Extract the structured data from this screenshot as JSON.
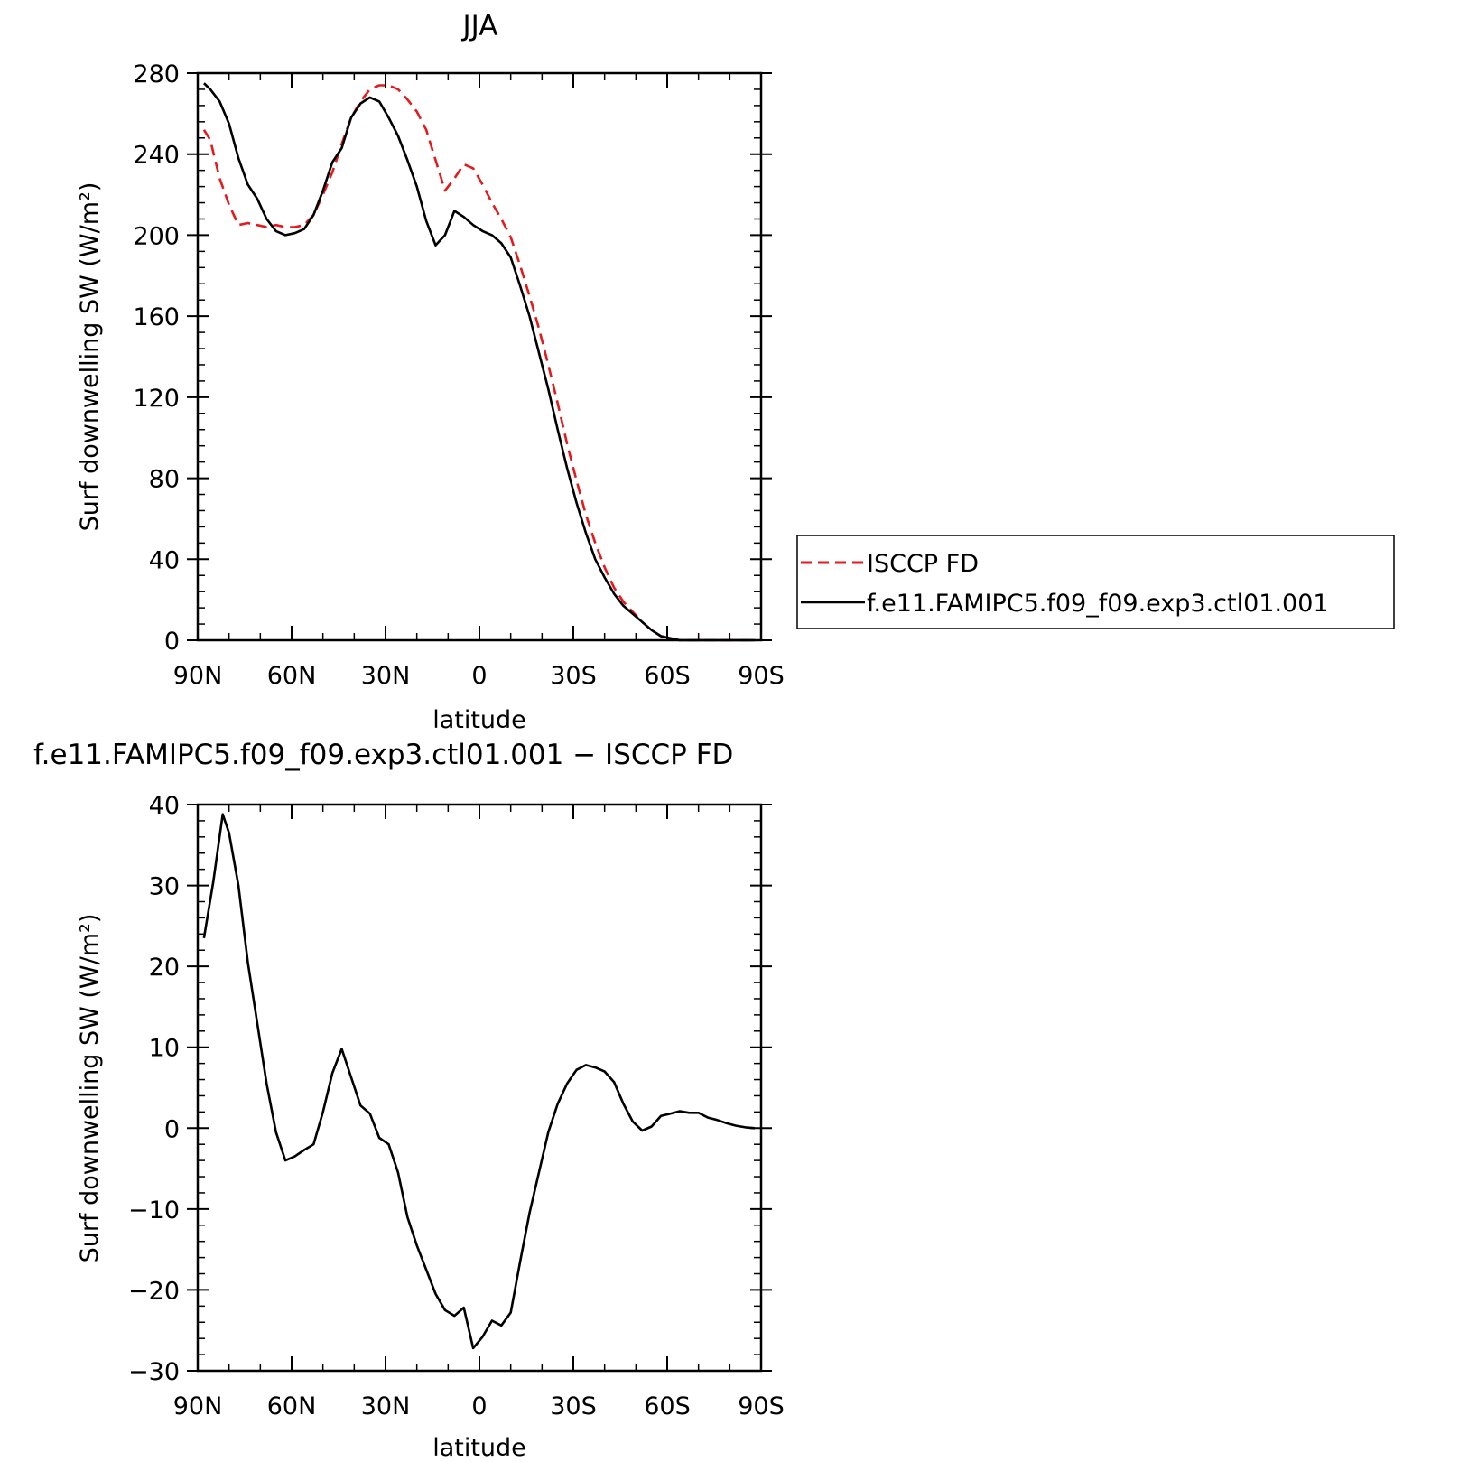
{
  "chart_data": [
    {
      "type": "line",
      "title": "JJA",
      "xlabel": "latitude",
      "ylabel": "Surf downwelling SW (W/m²)",
      "xlim": [
        90,
        -90
      ],
      "ylim": [
        0,
        280
      ],
      "xticks": [
        90,
        60,
        30,
        0,
        -30,
        -60,
        -90
      ],
      "xtick_labels": [
        "90N",
        "60N",
        "30N",
        "0",
        "30S",
        "60S",
        "90S"
      ],
      "yticks": [
        0,
        40,
        80,
        120,
        160,
        200,
        240,
        280
      ],
      "ytick_labels": [
        "0",
        "40",
        "80",
        "120",
        "160",
        "200",
        "240",
        "280"
      ],
      "grid": false,
      "legend_position": "right",
      "series": [
        {
          "name": "ISCCP FD",
          "color": "#e41a1c",
          "dash": "dashed",
          "x": [
            88,
            86,
            83,
            80,
            77,
            74,
            71,
            68,
            65,
            62,
            59,
            56,
            53,
            50,
            47,
            44,
            41,
            38,
            35,
            32,
            29,
            26,
            23,
            20,
            17,
            14,
            11,
            8,
            5,
            2,
            -1,
            -4,
            -7,
            -10,
            -13,
            -16,
            -19,
            -22,
            -25,
            -28,
            -31,
            -34,
            -37,
            -40,
            -43,
            -46,
            -49,
            -52,
            -55,
            -58,
            -61,
            -64,
            -67,
            -70,
            -73,
            -76,
            -79,
            -82,
            -85,
            -88
          ],
          "y": [
            252,
            247,
            228,
            215,
            205,
            206,
            205,
            204,
            205,
            204,
            204,
            205,
            210,
            220,
            231,
            245,
            258,
            266,
            272,
            274,
            274,
            272,
            267,
            261,
            252,
            237,
            222,
            228,
            235,
            233,
            225,
            216,
            208,
            199,
            185,
            170,
            154,
            136,
            117,
            97,
            79,
            62,
            48,
            36,
            26,
            19,
            14,
            9,
            5,
            2,
            1,
            0,
            0,
            0,
            0,
            0,
            0,
            0,
            0,
            0
          ]
        },
        {
          "name": "f.e11.FAMIPC5.f09_f09.exp3.ctl01.001",
          "color": "#000000",
          "dash": "solid",
          "x": [
            88,
            86,
            83,
            80,
            77,
            74,
            71,
            68,
            65,
            62,
            59,
            56,
            53,
            50,
            47,
            44,
            41,
            38,
            35,
            32,
            29,
            26,
            23,
            20,
            17,
            14,
            11,
            8,
            5,
            2,
            -1,
            -4,
            -7,
            -10,
            -13,
            -16,
            -19,
            -22,
            -25,
            -28,
            -31,
            -34,
            -37,
            -40,
            -43,
            -46,
            -49,
            -52,
            -55,
            -58,
            -61,
            -64,
            -67,
            -70,
            -73,
            -76,
            -79,
            -82,
            -85,
            -88
          ],
          "y": [
            275,
            272,
            266,
            255,
            238,
            225,
            218,
            208,
            202,
            200,
            201,
            203,
            210,
            222,
            236,
            243,
            258,
            265,
            268,
            266,
            258,
            249,
            237,
            224,
            207,
            195,
            200,
            212,
            209,
            205,
            202,
            200,
            196,
            189,
            175,
            160,
            142,
            124,
            104,
            85,
            68,
            53,
            40,
            31,
            23,
            17,
            13,
            9,
            5,
            2,
            1,
            0,
            0,
            0,
            0,
            0,
            0,
            0,
            0,
            0
          ]
        }
      ]
    },
    {
      "type": "line",
      "title": "f.e11.FAMIPC5.f09_f09.exp3.ctl01.001 − ISCCP FD",
      "xlabel": "latitude",
      "ylabel": "Surf downwelling SW (W/m²)",
      "xlim": [
        90,
        -90
      ],
      "ylim": [
        -30,
        40
      ],
      "xticks": [
        90,
        60,
        30,
        0,
        -30,
        -60,
        -90
      ],
      "xtick_labels": [
        "90N",
        "60N",
        "30N",
        "0",
        "30S",
        "60S",
        "90S"
      ],
      "yticks": [
        -30,
        -20,
        -10,
        0,
        10,
        20,
        30,
        40
      ],
      "ytick_labels": [
        "−30",
        "−20",
        "−10",
        "0",
        "10",
        "20",
        "30",
        "40"
      ],
      "grid": false,
      "series": [
        {
          "color": "#000000",
          "dash": "solid",
          "x": [
            88,
            85,
            82,
            80,
            77,
            74,
            71,
            68,
            65,
            62,
            59,
            56,
            53,
            50,
            47,
            44,
            41,
            38,
            35,
            32,
            29,
            26,
            23,
            20,
            17,
            14,
            11,
            8,
            5,
            2,
            -1,
            -4,
            -7,
            -10,
            -13,
            -16,
            -19,
            -22,
            -25,
            -28,
            -31,
            -34,
            -37,
            -40,
            -43,
            -46,
            -49,
            -52,
            -55,
            -58,
            -61,
            -64,
            -67,
            -70,
            -73,
            -76,
            -79,
            -82,
            -85,
            -88
          ],
          "y": [
            23.5,
            30.5,
            38.8,
            36.5,
            30,
            20.5,
            13,
            5.5,
            -0.5,
            -4,
            -3.5,
            -2.7,
            -2,
            2,
            6.8,
            9.8,
            6.3,
            2.8,
            1.8,
            -1.2,
            -2,
            -5.5,
            -11,
            -14.5,
            -17.5,
            -20.5,
            -22.5,
            -23.2,
            -22.2,
            -27.2,
            -25.8,
            -23.8,
            -24.4,
            -22.8,
            -16.5,
            -10.5,
            -5.5,
            -0.5,
            3,
            5.5,
            7.2,
            7.8,
            7.5,
            7,
            5.7,
            3,
            0.8,
            -0.3,
            0.2,
            1.5,
            1.8,
            2.1,
            1.9,
            1.9,
            1.3,
            1,
            0.6,
            0.3,
            0.1,
            0
          ]
        }
      ]
    }
  ]
}
